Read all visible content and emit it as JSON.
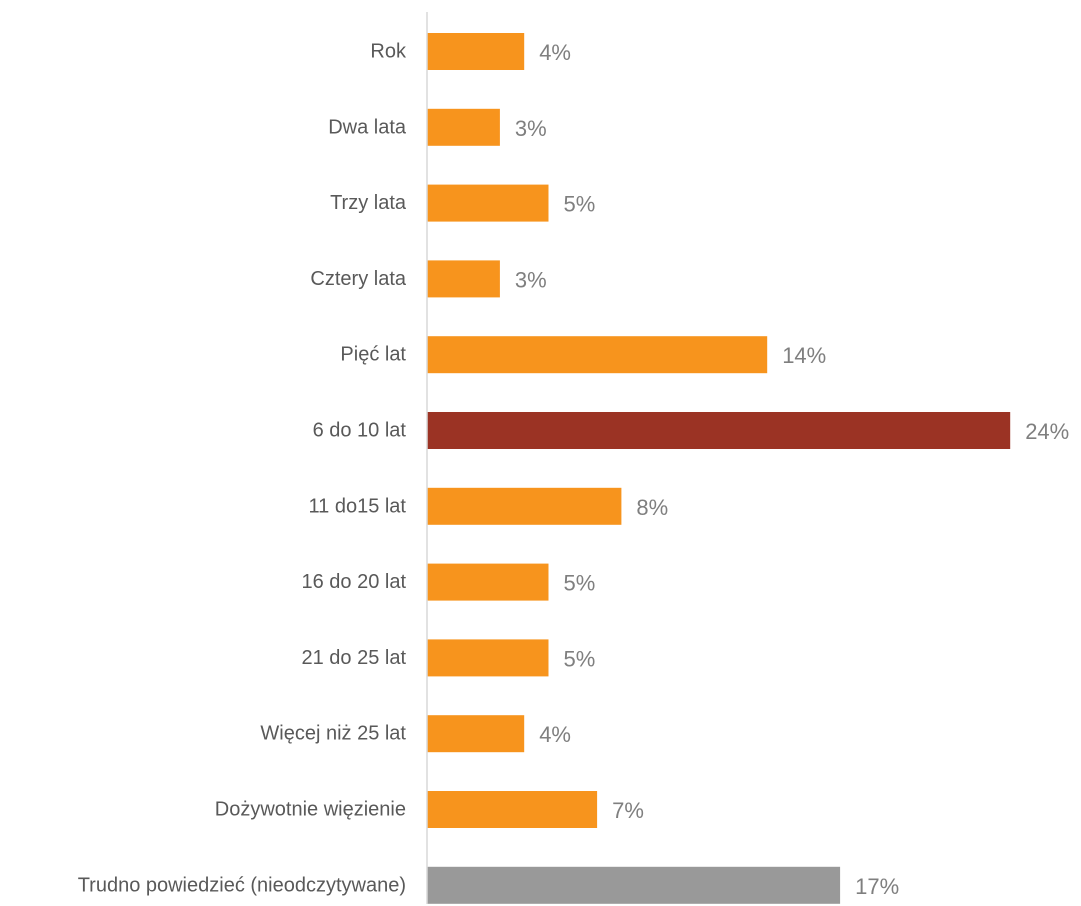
{
  "chart_data": {
    "type": "bar",
    "orientation": "horizontal",
    "categories": [
      "Rok",
      "Dwa lata",
      "Trzy lata",
      "Cztery lata",
      "Pięć lat",
      "6 do 10 lat",
      "11 do15 lat",
      "16 do 20 lat",
      "21 do 25 lat",
      "Więcej niż 25 lat",
      "Dożywotnie więzienie",
      "Trudno powiedzieć (nieodczytywane)"
    ],
    "values": [
      4,
      3,
      5,
      3,
      14,
      24,
      8,
      5,
      5,
      4,
      7,
      17
    ],
    "value_labels": [
      "4%",
      "3%",
      "5%",
      "3%",
      "14%",
      "24%",
      "8%",
      "5%",
      "5%",
      "4%",
      "7%",
      "17%"
    ],
    "unit": "%",
    "bar_colors": [
      "#f7941d",
      "#f7941d",
      "#f7941d",
      "#f7941d",
      "#f7941d",
      "#9b3324",
      "#f7941d",
      "#f7941d",
      "#f7941d",
      "#f7941d",
      "#f7941d",
      "#999999"
    ],
    "title": "",
    "xlabel": "",
    "ylabel": "",
    "xlim": [
      0,
      24
    ],
    "grid": false,
    "legend": "none",
    "axis_color": "#d9d9d9"
  }
}
